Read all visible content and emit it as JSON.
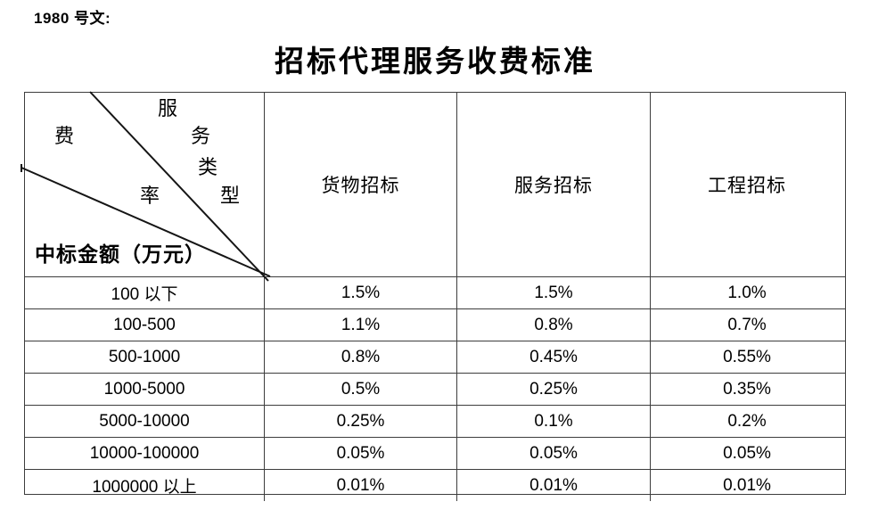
{
  "doc": {
    "ref_label": "1980 号文:",
    "title": "招标代理服务收费标准"
  },
  "table": {
    "corner": {
      "diagonal_top_label": "服务类型",
      "diagonal_top_chars": [
        "服",
        "务",
        "类",
        "型"
      ],
      "diagonal_mid_label": "费率",
      "diagonal_mid_chars": [
        "费",
        "率"
      ],
      "bottom_label": "中标金额（万元）"
    },
    "columns": [
      "货物招标",
      "服务招标",
      "工程招标"
    ],
    "rows": [
      {
        "range": "100 以下",
        "values": [
          "1.5%",
          "1.5%",
          "1.0%"
        ]
      },
      {
        "range": "100-500",
        "values": [
          "1.1%",
          "0.8%",
          "0.7%"
        ]
      },
      {
        "range": "500-1000",
        "values": [
          "0.8%",
          "0.45%",
          "0.55%"
        ]
      },
      {
        "range": "1000-5000",
        "values": [
          "0.5%",
          "0.25%",
          "0.35%"
        ]
      },
      {
        "range": "5000-10000",
        "values": [
          "0.25%",
          "0.1%",
          "0.2%"
        ]
      },
      {
        "range": "10000-100000",
        "values": [
          "0.05%",
          "0.05%",
          "0.05%"
        ]
      },
      {
        "range": "1000000 以上",
        "values": [
          "0.01%",
          "0.01%",
          "0.01%"
        ]
      }
    ]
  },
  "colors": {
    "background": "#ffffff",
    "text": "#000000",
    "grid_border": "#3d3d3d",
    "diagonal_line": "#151515"
  }
}
